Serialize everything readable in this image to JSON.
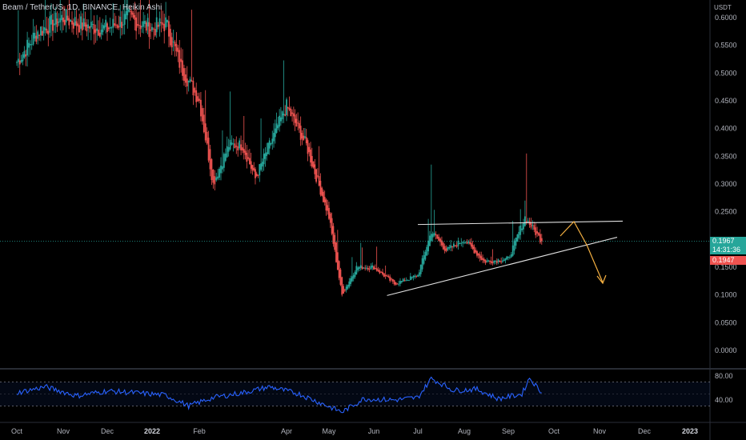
{
  "header": {
    "title": "Beam / TetherUS, 1D, BINANCE, Heikin Ashi"
  },
  "price_axis": {
    "unit": "USDT",
    "current_price": "0.1967",
    "countdown": "14:31:36",
    "low_price": "0.1947"
  },
  "colors": {
    "background": "#000000",
    "up_candle": "#26a69a",
    "down_candle": "#ef5350",
    "rsi_line": "#2962ff",
    "arrow": "#f5b041",
    "trendline": "#e0e0e0",
    "price_line": "#26a69a"
  },
  "chart_data": [
    {
      "type": "candlestick",
      "title": "Beam / TetherUS, 1D, BINANCE, Heikin Ashi",
      "xlabel": "",
      "ylabel": "USDT",
      "x_ticks": [
        "Oct",
        "Nov",
        "Dec",
        "2022",
        "Feb",
        "Apr",
        "May",
        "Jun",
        "Jul",
        "Aug",
        "Sep",
        "Oct",
        "Nov",
        "Dec",
        "2023"
      ],
      "y_ticks": [
        "0.6000",
        "0.5500",
        "0.5000",
        "0.4500",
        "0.4000",
        "0.3500",
        "0.3000",
        "0.2500",
        "0.1500",
        "0.1000",
        "0.0500",
        "0.0000"
      ],
      "ylim": [
        0,
        0.61
      ],
      "grid": false,
      "series": [
        {
          "values": [
            {
              "x": "2021-10-01",
              "close": 0.52
            },
            {
              "x": "2021-10-15",
              "close": 0.575
            },
            {
              "x": "2021-11-01",
              "close": 0.6
            },
            {
              "x": "2021-11-15",
              "close": 0.585
            },
            {
              "x": "2021-12-01",
              "close": 0.58
            },
            {
              "x": "2021-12-15",
              "close": 0.6
            },
            {
              "x": "2022-01-01",
              "close": 0.58
            },
            {
              "x": "2022-01-10",
              "close": 0.59
            },
            {
              "x": "2022-01-20",
              "close": 0.51
            },
            {
              "x": "2022-02-01",
              "close": 0.45
            },
            {
              "x": "2022-02-10",
              "close": 0.3
            },
            {
              "x": "2022-02-20",
              "close": 0.37
            },
            {
              "x": "2022-03-01",
              "close": 0.37
            },
            {
              "x": "2022-03-10",
              "close": 0.31
            },
            {
              "x": "2022-03-20",
              "close": 0.37
            },
            {
              "x": "2022-04-01",
              "close": 0.44
            },
            {
              "x": "2022-04-15",
              "close": 0.37
            },
            {
              "x": "2022-05-01",
              "close": 0.24
            },
            {
              "x": "2022-05-10",
              "close": 0.1
            },
            {
              "x": "2022-05-20",
              "close": 0.15
            },
            {
              "x": "2022-06-01",
              "close": 0.15
            },
            {
              "x": "2022-06-15",
              "close": 0.12
            },
            {
              "x": "2022-07-01",
              "close": 0.135
            },
            {
              "x": "2022-07-10",
              "close": 0.215
            },
            {
              "x": "2022-07-20",
              "close": 0.18
            },
            {
              "x": "2022-08-01",
              "close": 0.2
            },
            {
              "x": "2022-08-15",
              "close": 0.16
            },
            {
              "x": "2022-09-01",
              "close": 0.165
            },
            {
              "x": "2022-09-12",
              "close": 0.24
            },
            {
              "x": "2022-09-23",
              "close": 0.1967
            }
          ]
        }
      ],
      "annotations": [
        "horizontal resistance near 0.235",
        "rising support trendline",
        "projected path: up to resistance then down"
      ]
    },
    {
      "type": "line",
      "title": "",
      "y_ticks": [
        "80.00",
        "40.00"
      ],
      "ylim": [
        10,
        90
      ],
      "series": [
        {
          "values": [
            {
              "x": "2021-10-01",
              "y": 52
            },
            {
              "x": "2021-10-20",
              "y": 62
            },
            {
              "x": "2021-11-10",
              "y": 47
            },
            {
              "x": "2021-12-01",
              "y": 55
            },
            {
              "x": "2021-12-20",
              "y": 52
            },
            {
              "x": "2022-01-10",
              "y": 48
            },
            {
              "x": "2022-01-25",
              "y": 30
            },
            {
              "x": "2022-02-10",
              "y": 44
            },
            {
              "x": "2022-03-01",
              "y": 52
            },
            {
              "x": "2022-03-20",
              "y": 62
            },
            {
              "x": "2022-04-10",
              "y": 50
            },
            {
              "x": "2022-04-25",
              "y": 35
            },
            {
              "x": "2022-05-10",
              "y": 20
            },
            {
              "x": "2022-05-25",
              "y": 42
            },
            {
              "x": "2022-06-15",
              "y": 40
            },
            {
              "x": "2022-07-01",
              "y": 44
            },
            {
              "x": "2022-07-10",
              "y": 76
            },
            {
              "x": "2022-07-25",
              "y": 56
            },
            {
              "x": "2022-08-10",
              "y": 58
            },
            {
              "x": "2022-08-25",
              "y": 42
            },
            {
              "x": "2022-09-10",
              "y": 50
            },
            {
              "x": "2022-09-15",
              "y": 77
            },
            {
              "x": "2022-09-23",
              "y": 52
            }
          ]
        }
      ]
    }
  ]
}
